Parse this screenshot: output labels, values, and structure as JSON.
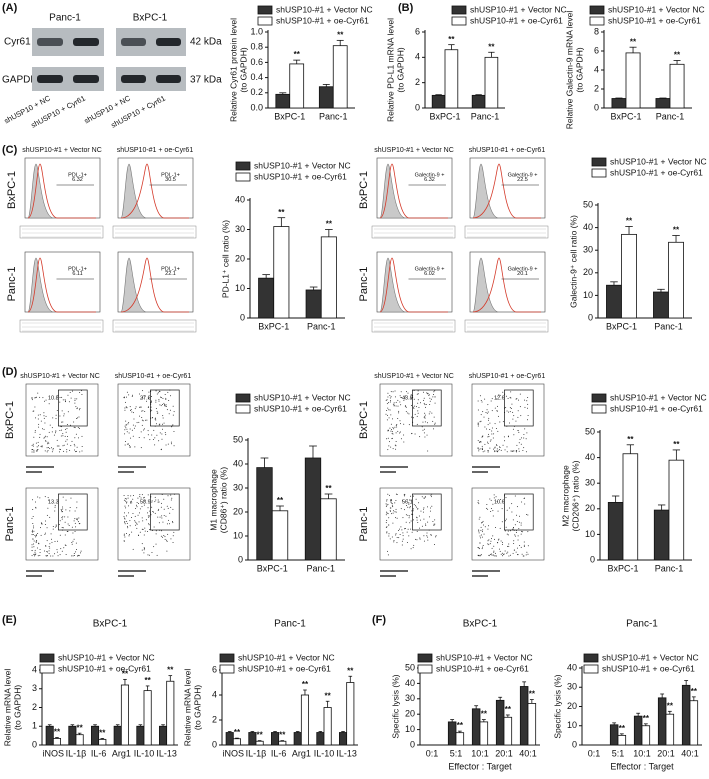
{
  "panels": [
    "(A)",
    "(B)",
    "(C)",
    "(D)",
    "(E)",
    "(F)"
  ],
  "blot": {
    "cell_lines": [
      "Panc-1",
      "BxPC-1"
    ],
    "proteins": [
      "Cyr61",
      "GAPDH"
    ],
    "sizes": [
      "42 kDa",
      "37 kDa"
    ],
    "lanes": [
      "shUSP10 + NC",
      "shUSP10 + Cyr61",
      "shUSP10 + NC",
      "shUSP10 + Cyr61"
    ]
  },
  "groups": [
    "shUSP10-#1 + Vector NC",
    "shUSP10-#1 + oe-Cyr61"
  ],
  "rows": [
    "BxPC-1",
    "Panc-1"
  ],
  "flow_c": {
    "pdl1": [
      {
        "gate": "PDL-1+",
        "value": "6.32"
      },
      {
        "gate": "PDL-1+",
        "value": "30.5"
      },
      {
        "gate": "PDL-1+",
        "value": "6.11"
      },
      {
        "gate": "PDL-1+",
        "value": "22.1"
      }
    ],
    "gal9": [
      {
        "gate": "Galectin-9 +",
        "value": "6.32"
      },
      {
        "gate": "Galectin-9 +",
        "value": "22.5"
      },
      {
        "gate": "Galectin-9 +",
        "value": "6.02"
      },
      {
        "gate": "Galectin-9 +",
        "value": "20.1"
      }
    ]
  },
  "flow_d": {
    "m1_gates": [
      "10.8",
      "27.6",
      "13.3",
      "58.9"
    ],
    "m2_gates": [
      "43.8",
      "12.6",
      "56.1",
      "10.6"
    ]
  },
  "chart_data": [
    {
      "type": "bar",
      "ylabel": [
        "Relative Cyr61 protein level",
        "(to GAPDH)"
      ],
      "categories": [
        "BxPC-1",
        "Panc-1"
      ],
      "series": [
        {
          "name": "shUSP10-#1 + Vector NC",
          "color": "#333333",
          "values": [
            0.18,
            0.28
          ],
          "errors": [
            0.02,
            0.03
          ]
        },
        {
          "name": "shUSP10-#1 + oe-Cyr61",
          "color": "#ffffff",
          "values": [
            0.58,
            0.82
          ],
          "errors": [
            0.05,
            0.07
          ],
          "significance": [
            "**",
            "**"
          ]
        }
      ],
      "ylim": [
        0,
        1
      ],
      "yticks": [
        {
          "value": 0,
          "label": "0.0"
        },
        0.2,
        0.4,
        0.6,
        0.8,
        {
          "value": 1,
          "label": "1.0"
        }
      ]
    },
    {
      "type": "bar",
      "ylabel": [
        "Relative PD-L1 mRNA level",
        "(to GAPDH)"
      ],
      "categories": [
        "BxPC-1",
        "Panc-1"
      ],
      "series": [
        {
          "name": "shUSP10-#1 + Vector NC",
          "color": "#333333",
          "values": [
            1,
            1
          ],
          "errors": [
            0.05,
            0.05
          ]
        },
        {
          "name": "shUSP10-#1 + oe-Cyr61",
          "color": "#ffffff",
          "values": [
            4.6,
            4.0
          ],
          "errors": [
            0.4,
            0.4
          ],
          "significance": [
            "**",
            "**"
          ]
        }
      ],
      "ylim": [
        0,
        6
      ],
      "yticks": [
        0,
        2,
        4,
        6
      ]
    },
    {
      "type": "bar",
      "ylabel": [
        "Relative Galectin-9 mRNA level",
        "(to GAPDH)"
      ],
      "categories": [
        "BxPC-1",
        "Panc-1"
      ],
      "series": [
        {
          "name": "shUSP10-#1 + Vector NC",
          "color": "#333333",
          "values": [
            1,
            1
          ],
          "errors": [
            0.05,
            0.05
          ]
        },
        {
          "name": "shUSP10-#1 + oe-Cyr61",
          "color": "#ffffff",
          "values": [
            5.8,
            4.6
          ],
          "errors": [
            0.6,
            0.4
          ],
          "significance": [
            "**",
            "**"
          ]
        }
      ],
      "ylim": [
        0,
        8
      ],
      "yticks": [
        0,
        2,
        4,
        6,
        8
      ]
    },
    {
      "type": "bar",
      "ylabel": [
        "PD-L1⁺ cell ratio (%)"
      ],
      "categories": [
        "BxPC-1",
        "Panc-1"
      ],
      "series": [
        {
          "name": "shUSP10-#1 + Vector NC",
          "color": "#333333",
          "values": [
            13.5,
            9.5
          ],
          "errors": [
            1.2,
            1
          ]
        },
        {
          "name": "shUSP10-#1 + oe-Cyr61",
          "color": "#ffffff",
          "values": [
            31,
            27.5
          ],
          "errors": [
            3,
            2.5
          ],
          "significance": [
            "**",
            "**"
          ]
        }
      ],
      "ylim": [
        0,
        40
      ],
      "yticks": [
        0,
        10,
        20,
        30,
        40
      ]
    },
    {
      "type": "bar",
      "ylabel": [
        "Galectin-9⁺ cell ratio (%)"
      ],
      "categories": [
        "BxPC-1",
        "Panc-1"
      ],
      "series": [
        {
          "name": "shUSP10-#1 + Vector NC",
          "color": "#333333",
          "values": [
            14.5,
            11.5
          ],
          "errors": [
            1.5,
            1.2
          ]
        },
        {
          "name": "shUSP10-#1 + oe-Cyr61",
          "color": "#ffffff",
          "values": [
            37,
            33.5
          ],
          "errors": [
            3.5,
            3
          ],
          "significance": [
            "**",
            "**"
          ]
        }
      ],
      "ylim": [
        0,
        50
      ],
      "yticks": [
        0,
        10,
        20,
        30,
        40,
        50
      ]
    },
    {
      "type": "bar",
      "ylabel": [
        "M1 macrophage",
        "(CD86⁺) ratio (%)"
      ],
      "categories": [
        "BxPC-1",
        "Panc-1"
      ],
      "series": [
        {
          "name": "shUSP10-#1 + Vector NC",
          "color": "#333333",
          "values": [
            38.5,
            42.5
          ],
          "errors": [
            4,
            5
          ]
        },
        {
          "name": "shUSP10-#1 + oe-Cyr61",
          "color": "#ffffff",
          "values": [
            20.5,
            25.5
          ],
          "errors": [
            2,
            2
          ],
          "significance": [
            "**",
            "**"
          ]
        }
      ],
      "ylim": [
        0,
        50
      ],
      "yticks": [
        0,
        10,
        20,
        30,
        40,
        50
      ]
    },
    {
      "type": "bar",
      "ylabel": [
        "M2 macrophage",
        "(CD206⁺) ratio (%)"
      ],
      "categories": [
        "BxPC-1",
        "Panc-1"
      ],
      "series": [
        {
          "name": "shUSP10-#1 + Vector NC",
          "color": "#333333",
          "values": [
            22.5,
            19.5
          ],
          "errors": [
            2.5,
            2
          ]
        },
        {
          "name": "shUSP10-#1 + oe-Cyr61",
          "color": "#ffffff",
          "values": [
            41.5,
            39
          ],
          "errors": [
            3.5,
            4
          ],
          "significance": [
            "**",
            "**"
          ]
        }
      ],
      "ylim": [
        0,
        50
      ],
      "yticks": [
        0,
        10,
        20,
        30,
        40,
        50
      ]
    },
    {
      "type": "bar",
      "title": "BxPC-1",
      "ylabel": [
        "Relative mRNA level",
        "(to GAPDH)"
      ],
      "categories": [
        "iNOS",
        "IL-1β",
        "IL-6",
        "Arg1",
        "IL-10",
        "IL-13"
      ],
      "series": [
        {
          "name": "shUSP10-#1 + Vector NC",
          "color": "#333333",
          "values": [
            1,
            1,
            1,
            1,
            1,
            1
          ],
          "errors": [
            0.08,
            0.08,
            0.08,
            0.08,
            0.08,
            0.08
          ]
        },
        {
          "name": "shUSP10-#1 + oe-Cyr61",
          "color": "#ffffff",
          "values": [
            0.35,
            0.55,
            0.3,
            3.2,
            2.9,
            3.4
          ],
          "errors": [
            0.05,
            0.08,
            0.05,
            0.3,
            0.25,
            0.3
          ],
          "significance": [
            "**",
            "**",
            "**",
            "**",
            "**",
            "**"
          ]
        }
      ],
      "ylim": [
        0,
        4
      ],
      "yticks": [
        0,
        1,
        2,
        3,
        4
      ]
    },
    {
      "type": "bar",
      "title": "Panc-1",
      "ylabel": [
        "Relative mRNA level",
        "(to GAPDH)"
      ],
      "categories": [
        "iNOS",
        "IL-1β",
        "IL-6",
        "Arg1",
        "IL-10",
        "IL-13"
      ],
      "series": [
        {
          "name": "shUSP10-#1 + Vector NC",
          "color": "#333333",
          "values": [
            1,
            1,
            1,
            1,
            1,
            1
          ],
          "errors": [
            0.08,
            0.08,
            0.08,
            0.08,
            0.08,
            0.08
          ]
        },
        {
          "name": "shUSP10-#1 + oe-Cyr61",
          "color": "#ffffff",
          "values": [
            0.5,
            0.3,
            0.3,
            4.0,
            3.0,
            5.0
          ],
          "errors": [
            0.05,
            0.05,
            0.05,
            0.4,
            0.5,
            0.5
          ],
          "significance": [
            "**",
            "**",
            "**",
            "**",
            "**",
            "**"
          ]
        }
      ],
      "ylim": [
        0,
        6
      ],
      "yticks": [
        0,
        2,
        4,
        6
      ]
    },
    {
      "type": "bar",
      "title": "BxPC-1",
      "ylabel": [
        "Specific lysis (%)"
      ],
      "xlabel": "Effector : Target",
      "categories": [
        "0:1",
        "5:1",
        "10:1",
        "20:1",
        "40:1"
      ],
      "series": [
        {
          "name": "shUSP10-#1 + Vector NC",
          "color": "#333333",
          "values": [
            0,
            15,
            23.5,
            29,
            38
          ],
          "errors": [
            0,
            1.5,
            2,
            2,
            3
          ]
        },
        {
          "name": "shUSP10-#1 + oe-Cyr61",
          "color": "#ffffff",
          "values": [
            0,
            8,
            15,
            18,
            27
          ],
          "errors": [
            0,
            1,
            1.5,
            1.5,
            2.5
          ],
          "significance": [
            null,
            "**",
            "**",
            "**",
            "**"
          ]
        }
      ],
      "ylim": [
        0,
        50
      ],
      "yticks": [
        0,
        10,
        20,
        30,
        40,
        50
      ]
    },
    {
      "type": "bar",
      "title": "Panc-1",
      "ylabel": [
        "Specific lysis (%)"
      ],
      "xlabel": "Effector : Target",
      "categories": [
        "0:1",
        "5:1",
        "10:1",
        "20:1",
        "40:1"
      ],
      "series": [
        {
          "name": "shUSP10-#1 + Vector NC",
          "color": "#333333",
          "values": [
            0,
            10.5,
            15,
            24.5,
            31
          ],
          "errors": [
            0,
            1,
            1.5,
            2,
            2.5
          ]
        },
        {
          "name": "shUSP10-#1 + oe-Cyr61",
          "color": "#ffffff",
          "values": [
            0,
            5,
            10,
            16,
            23
          ],
          "errors": [
            0,
            0.8,
            1,
            1.5,
            2
          ],
          "significance": [
            null,
            "**",
            "**",
            "**",
            "**"
          ]
        }
      ],
      "ylim": [
        0,
        40
      ],
      "yticks": [
        0,
        10,
        20,
        30,
        40
      ]
    }
  ]
}
